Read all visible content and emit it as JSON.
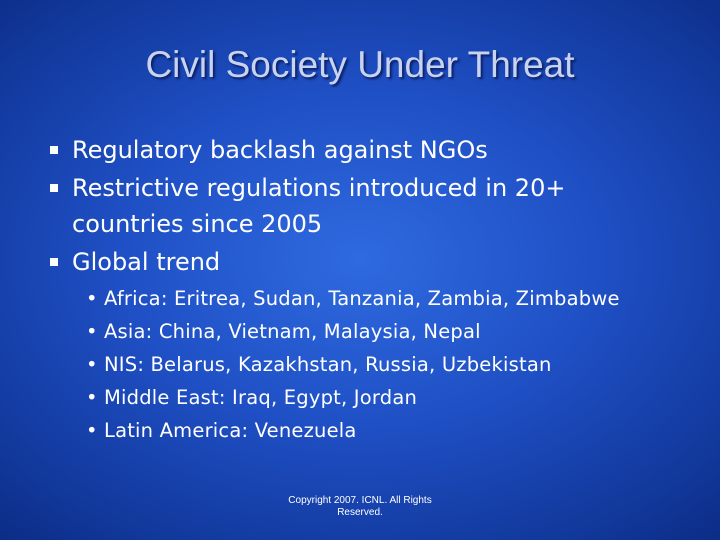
{
  "slide": {
    "title": "Civil Society Under Threat",
    "bullets": [
      "Regulatory backlash against NGOs",
      "Restrictive regulations introduced in 20+ countries since 2005",
      "Global trend"
    ],
    "sub_bullets": [
      "Africa: Eritrea, Sudan, Tanzania, Zambia, Zimbabwe",
      "Asia: China, Vietnam, Malaysia, Nepal",
      "NIS: Belarus, Kazakhstan, Russia, Uzbekistan",
      "Middle East: Iraq, Egypt, Jordan",
      "Latin America: Venezuela"
    ],
    "footer": "Copyright 2007. ICNL. All Rights Reserved."
  }
}
